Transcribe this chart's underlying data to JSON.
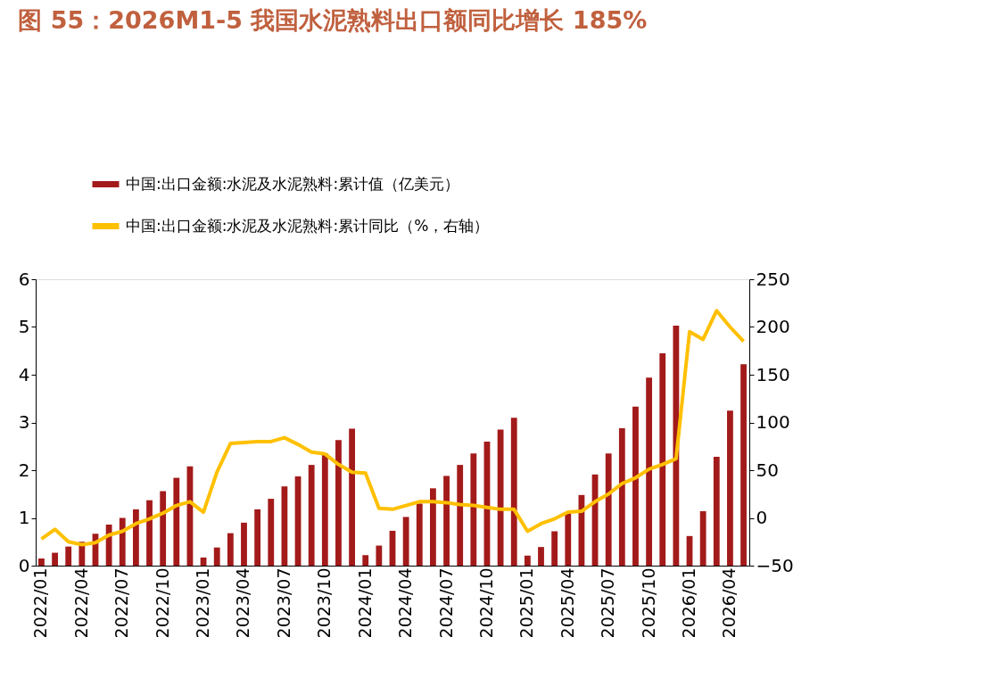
{
  "chart_data": {
    "type": "bar",
    "title": "图 55：2026M1-5 我国水泥熟料出口额同比增长 185%",
    "categories": [
      "2022/01",
      null,
      null,
      "2022/04",
      null,
      null,
      "2022/07",
      null,
      null,
      "2022/10",
      null,
      null,
      "2023/01",
      null,
      null,
      "2023/04",
      null,
      null,
      "2023/07",
      null,
      null,
      "2023/10",
      null,
      null,
      "2024/01",
      null,
      null,
      "2024/04",
      null,
      null,
      "2024/07",
      null,
      null,
      "2024/10",
      null,
      null,
      "2025/01",
      null,
      null,
      "2025/04",
      null,
      null,
      "2025/07",
      null,
      null,
      "2025/10",
      null,
      null,
      "2026/01",
      null,
      null,
      "2026/04",
      null
    ],
    "series": [
      {
        "name": "中国:出口金额:水泥及水泥熟料:累计值（亿美元）",
        "color": "#a31a1a",
        "values": [
          0.15,
          0.27,
          0.4,
          0.5,
          0.67,
          0.86,
          1.0,
          1.18,
          1.37,
          1.56,
          1.84,
          2.08,
          0.17,
          0.38,
          0.68,
          0.9,
          1.18,
          1.4,
          1.66,
          1.87,
          2.11,
          2.35,
          2.63,
          2.87,
          0.22,
          0.42,
          0.73,
          1.02,
          1.3,
          1.62,
          1.88,
          2.11,
          2.35,
          2.6,
          2.85,
          3.1,
          0.21,
          0.39,
          0.72,
          1.1,
          1.48,
          1.91,
          2.35,
          2.88,
          3.33,
          3.94,
          4.45,
          5.03,
          0.62,
          1.14,
          2.28,
          3.25,
          4.22
        ]
      },
      {
        "name": "中国:出口金额:水泥及水泥熟料:累计同比（%，右轴）",
        "type": "line",
        "axis": "y2",
        "color": "#ffc000",
        "values": [
          -22,
          -12,
          -25,
          -28,
          -26,
          -18,
          -14,
          -6,
          -1,
          5,
          13,
          17,
          6,
          48,
          78,
          79,
          80,
          80,
          84,
          77,
          69,
          67,
          56,
          48,
          47,
          10,
          9,
          13,
          17,
          17,
          16,
          14,
          13,
          11,
          9,
          9,
          -14,
          -6,
          -1,
          6,
          7,
          17,
          25,
          36,
          42,
          51,
          56,
          62,
          195,
          187,
          217,
          200,
          185
        ]
      }
    ],
    "ylim": [
      0,
      6
    ],
    "yticks": [
      0,
      1,
      2,
      3,
      4,
      5,
      6
    ],
    "y2lim": [
      -50,
      250
    ],
    "y2ticks": [
      -50,
      0,
      50,
      100,
      150,
      200,
      250
    ],
    "legend": "top left",
    "grid": false
  }
}
